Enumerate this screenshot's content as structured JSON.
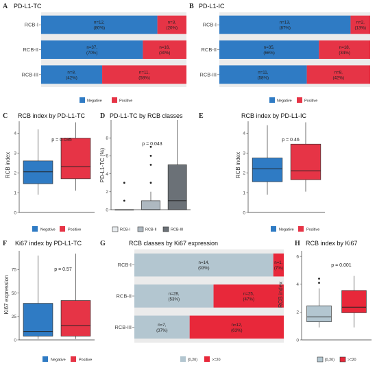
{
  "colors": {
    "negative": "#2f7bc4",
    "positive": "#e63446",
    "rcb1": "#e8ecef",
    "rcb2": "#aeb8c0",
    "rcb3": "#6b7177",
    "ki_low": "#b3c6d0",
    "ki_high": "#e8283a"
  },
  "panels": {
    "A": {
      "letter": "A",
      "title": "PD-L1-TC"
    },
    "B": {
      "letter": "B",
      "title": "PD-L1-IC"
    },
    "C": {
      "letter": "C",
      "title": "RCB index by PD-L1-TC",
      "ylabel": "RCB index",
      "pval": "p = 0.035"
    },
    "D": {
      "letter": "D",
      "title": "PD-L1-TC by RCB classes",
      "ylabel": "PD-L1-TC (%)",
      "pval": "p = 0.043"
    },
    "E": {
      "letter": "E",
      "title": "RCB index by PD-L1-IC",
      "ylabel": "RCB index",
      "pval": "p = 0.46"
    },
    "F": {
      "letter": "F",
      "title": "Ki67 index by PD-L1-TC",
      "ylabel": "Ki67 expression",
      "pval": "p = 0.57"
    },
    "G": {
      "letter": "G",
      "title": "RCB classes by Ki67 expression"
    },
    "H": {
      "letter": "H",
      "title": "RCB index by Ki67",
      "ylabel": "RCB index",
      "pval": "p = 0.001"
    }
  },
  "legends": {
    "negpos": [
      "Negative",
      "Positive"
    ],
    "rcb": [
      "RCB-I",
      "RCB-II",
      "RCB-III"
    ],
    "ki": [
      "[0,20)",
      ">=20"
    ]
  },
  "chart_data": [
    {
      "id": "A",
      "type": "bar",
      "stacked": true,
      "orientation": "horizontal",
      "title": "PD-L1-TC",
      "categories": [
        "RCB-I",
        "RCB-II",
        "RCB-III"
      ],
      "series": [
        {
          "name": "Negative",
          "values": [
            80,
            70,
            42
          ],
          "labels": [
            "n=12,\n(80%)",
            "n=37,\n(70%)",
            "n=8,\n(42%)"
          ]
        },
        {
          "name": "Positive",
          "values": [
            20,
            30,
            58
          ],
          "labels": [
            "n=3,\n(20%)",
            "n=16,\n(30%)",
            "n=11,\n(58%)"
          ]
        }
      ]
    },
    {
      "id": "B",
      "type": "bar",
      "stacked": true,
      "orientation": "horizontal",
      "title": "PD-L1-IC",
      "categories": [
        "RCB-I",
        "RCB-II",
        "RCB-III"
      ],
      "series": [
        {
          "name": "Negative",
          "values": [
            87,
            66,
            58
          ],
          "labels": [
            "n=13,\n(87%)",
            "n=35,\n(66%)",
            "n=11,\n(58%)"
          ]
        },
        {
          "name": "Positive",
          "values": [
            13,
            34,
            42
          ],
          "labels": [
            "n=2,\n(13%)",
            "n=18,\n(34%)",
            "n=8,\n(42%)"
          ]
        }
      ]
    },
    {
      "id": "C",
      "type": "box",
      "title": "RCB index by PD-L1-TC",
      "ylabel": "RCB index",
      "ylim": [
        0,
        4.6
      ],
      "yticks": [
        0,
        1,
        2,
        3,
        4
      ],
      "boxes": [
        {
          "name": "Negative",
          "min": 0.9,
          "q1": 1.45,
          "median": 2.05,
          "q3": 2.6,
          "max": 4.2,
          "outliers": []
        },
        {
          "name": "Positive",
          "min": 1.1,
          "q1": 1.7,
          "median": 2.3,
          "q3": 3.75,
          "max": 4.55,
          "outliers": []
        }
      ]
    },
    {
      "id": "D",
      "type": "box",
      "title": "PD-L1-TC by RCB classes",
      "ylabel": "PD-L1-TC (%)",
      "ylim": [
        0,
        10
      ],
      "yticks": [
        0,
        2,
        4,
        6,
        8
      ],
      "boxes": [
        {
          "name": "RCB-I",
          "min": 0,
          "q1": 0,
          "median": 0,
          "q3": 0,
          "max": 0,
          "outliers": [
            1,
            3
          ]
        },
        {
          "name": "RCB-II",
          "min": 0,
          "q1": 0,
          "median": 0,
          "q3": 1,
          "max": 2,
          "outliers": [
            3,
            5,
            6,
            7
          ]
        },
        {
          "name": "RCB-III",
          "min": 0,
          "q1": 0,
          "median": 1,
          "q3": 5,
          "max": 10,
          "outliers": []
        }
      ]
    },
    {
      "id": "E",
      "type": "box",
      "title": "RCB index by PD-L1-IC",
      "ylabel": "RCB index",
      "ylim": [
        0,
        4.6
      ],
      "yticks": [
        0,
        1,
        2,
        3,
        4
      ],
      "boxes": [
        {
          "name": "Negative",
          "min": 0.9,
          "q1": 1.55,
          "median": 2.2,
          "q3": 2.75,
          "max": 4.4,
          "outliers": []
        },
        {
          "name": "Positive",
          "min": 1.05,
          "q1": 1.65,
          "median": 2.1,
          "q3": 3.45,
          "max": 4.55,
          "outliers": []
        }
      ]
    },
    {
      "id": "F",
      "type": "box",
      "title": "Ki67 index by PD-L1-TC",
      "ylabel": "Ki67 expression",
      "ylim": [
        0,
        95
      ],
      "yticks": [
        0,
        25,
        50,
        75
      ],
      "boxes": [
        {
          "name": "Negative",
          "min": 1,
          "q1": 4,
          "median": 9,
          "q3": 39,
          "max": 90,
          "outliers": []
        },
        {
          "name": "Positive",
          "min": 1,
          "q1": 4,
          "median": 15,
          "q3": 42,
          "max": 92,
          "outliers": []
        }
      ]
    },
    {
      "id": "G",
      "type": "bar",
      "stacked": true,
      "orientation": "horizontal",
      "title": "RCB classes by Ki67 expression",
      "categories": [
        "RCB-I",
        "RCB-II",
        "RCB-III"
      ],
      "series": [
        {
          "name": "[0,20)",
          "values": [
            93,
            53,
            37
          ],
          "labels": [
            "n=14,\n(93%)",
            "n=28,\n(53%)",
            "n=7,\n(37%)"
          ]
        },
        {
          "name": ">=20",
          "values": [
            7,
            47,
            63
          ],
          "labels": [
            "n=1,\n(7%)",
            "n=25,\n(47%)",
            "n=12,\n(63%)"
          ]
        }
      ]
    },
    {
      "id": "H",
      "type": "box",
      "title": "RCB index by Ki67",
      "ylabel": "RCB index",
      "ylim": [
        0,
        6.4
      ],
      "yticks": [
        0,
        2,
        4,
        6
      ],
      "boxes": [
        {
          "name": "[0,20)",
          "min": 0.9,
          "q1": 1.3,
          "median": 1.65,
          "q3": 2.45,
          "max": 3.7,
          "outliers": [
            4.1,
            4.4
          ]
        },
        {
          "name": ">=20",
          "min": 0.9,
          "q1": 1.95,
          "median": 2.35,
          "q3": 3.55,
          "max": 4.6,
          "outliers": []
        }
      ]
    }
  ]
}
